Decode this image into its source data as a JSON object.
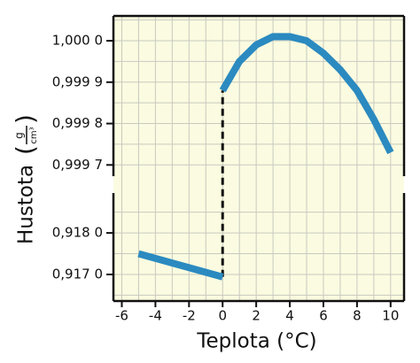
{
  "chart_data": {
    "type": "line",
    "xlabel": "Teplota (°C)",
    "ylabel": "Hustota",
    "ylabel_unit": {
      "numerator": "g",
      "denominator": "cm³"
    },
    "xlim": [
      -6.5,
      10.8
    ],
    "xticks": [
      -6,
      -4,
      -2,
      0,
      2,
      4,
      6,
      8,
      10
    ],
    "xminorticks": [
      -5,
      -3,
      -1,
      1,
      3,
      5,
      7,
      9
    ],
    "grid": true,
    "background": "#fafbe0",
    "broken_axis": true,
    "panels": [
      {
        "ylim": [
          0.99966,
          1.00006
        ],
        "yticks": [
          {
            "value": 0.9997,
            "label": "0,999 7"
          },
          {
            "value": 0.9998,
            "label": "0,999 8"
          },
          {
            "value": 0.9999,
            "label": "0,999 9"
          },
          {
            "value": 1.0,
            "label": "1,000 0"
          }
        ],
        "yminorticks": [
          0.99975,
          0.99985,
          0.99995,
          1.00005
        ]
      },
      {
        "ylim": [
          0.91636,
          0.91909
        ],
        "yticks": [
          {
            "value": 0.917,
            "label": "0,917 0"
          },
          {
            "value": 0.918,
            "label": "0,918 0"
          }
        ],
        "yminorticks": [
          0.9165,
          0.9175,
          0.9185
        ]
      }
    ],
    "series": [
      {
        "panel": 1,
        "color": "#2b8ac0",
        "x": [
          -5,
          0
        ],
        "values": [
          0.9175,
          0.91694
        ]
      },
      {
        "panel": 0,
        "color": "#2b8ac0",
        "x": [
          0,
          1,
          2,
          3,
          4,
          5,
          6,
          7,
          8,
          9,
          10
        ],
        "values": [
          0.99988,
          0.99995,
          0.99999,
          1.00001,
          1.00001,
          1.0,
          0.99997,
          0.99993,
          0.99988,
          0.99981,
          0.99973
        ]
      }
    ]
  }
}
